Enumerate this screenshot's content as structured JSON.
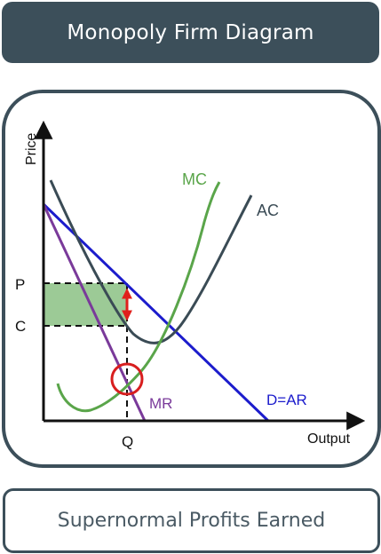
{
  "header": {
    "title": "Monopoly Firm Diagram"
  },
  "footer": {
    "caption": "Supernormal Profits Earned"
  },
  "diagram": {
    "axis": {
      "y_label": "Price",
      "x_label": "Output"
    },
    "ticks": {
      "p": "P",
      "c": "C",
      "q": "Q"
    },
    "curves": {
      "mc": "MC",
      "ac": "AC",
      "mr": "MR",
      "demand": "D=AR"
    },
    "colors": {
      "mc": "#5aa54a",
      "ac": "#3a4b55",
      "mr": "#7a3a9a",
      "demand": "#1c1ccc",
      "profit_area": "#9cca96",
      "profit_arrow": "#e0201c",
      "mr_mc_marker": "#d81e1e",
      "header_bg": "#3c4f5a"
    }
  }
}
